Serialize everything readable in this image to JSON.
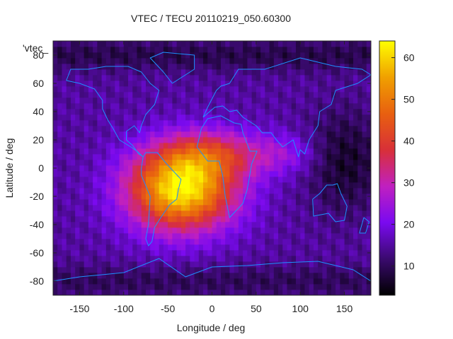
{
  "chart_data": {
    "type": "heatmap",
    "title": "VTEC / TECU 20110219_050.60300",
    "xlabel": "Longitude / deg",
    "ylabel": "Latitude / deg",
    "key_label": "'vtec_",
    "xlim": [
      -180,
      180
    ],
    "ylim": [
      -90,
      90
    ],
    "x_ticks": [
      -150,
      -100,
      -50,
      0,
      50,
      100,
      150
    ],
    "y_ticks": [
      -80,
      -60,
      -40,
      -20,
      0,
      20,
      40,
      60,
      80
    ],
    "colorbar": {
      "range": [
        3,
        64
      ],
      "ticks": [
        10,
        20,
        30,
        40,
        50,
        60
      ],
      "colors": [
        "#000000",
        "#3a0a6e",
        "#7a0af0",
        "#c020c0",
        "#d83038",
        "#e86010",
        "#f0a000",
        "#ffff00"
      ]
    },
    "peak": {
      "lon": -35,
      "lat": -15,
      "value": 63
    },
    "background_level": 15,
    "grid": false
  },
  "colors": {
    "coastline": "#1e90ff",
    "axis": "#222222"
  }
}
